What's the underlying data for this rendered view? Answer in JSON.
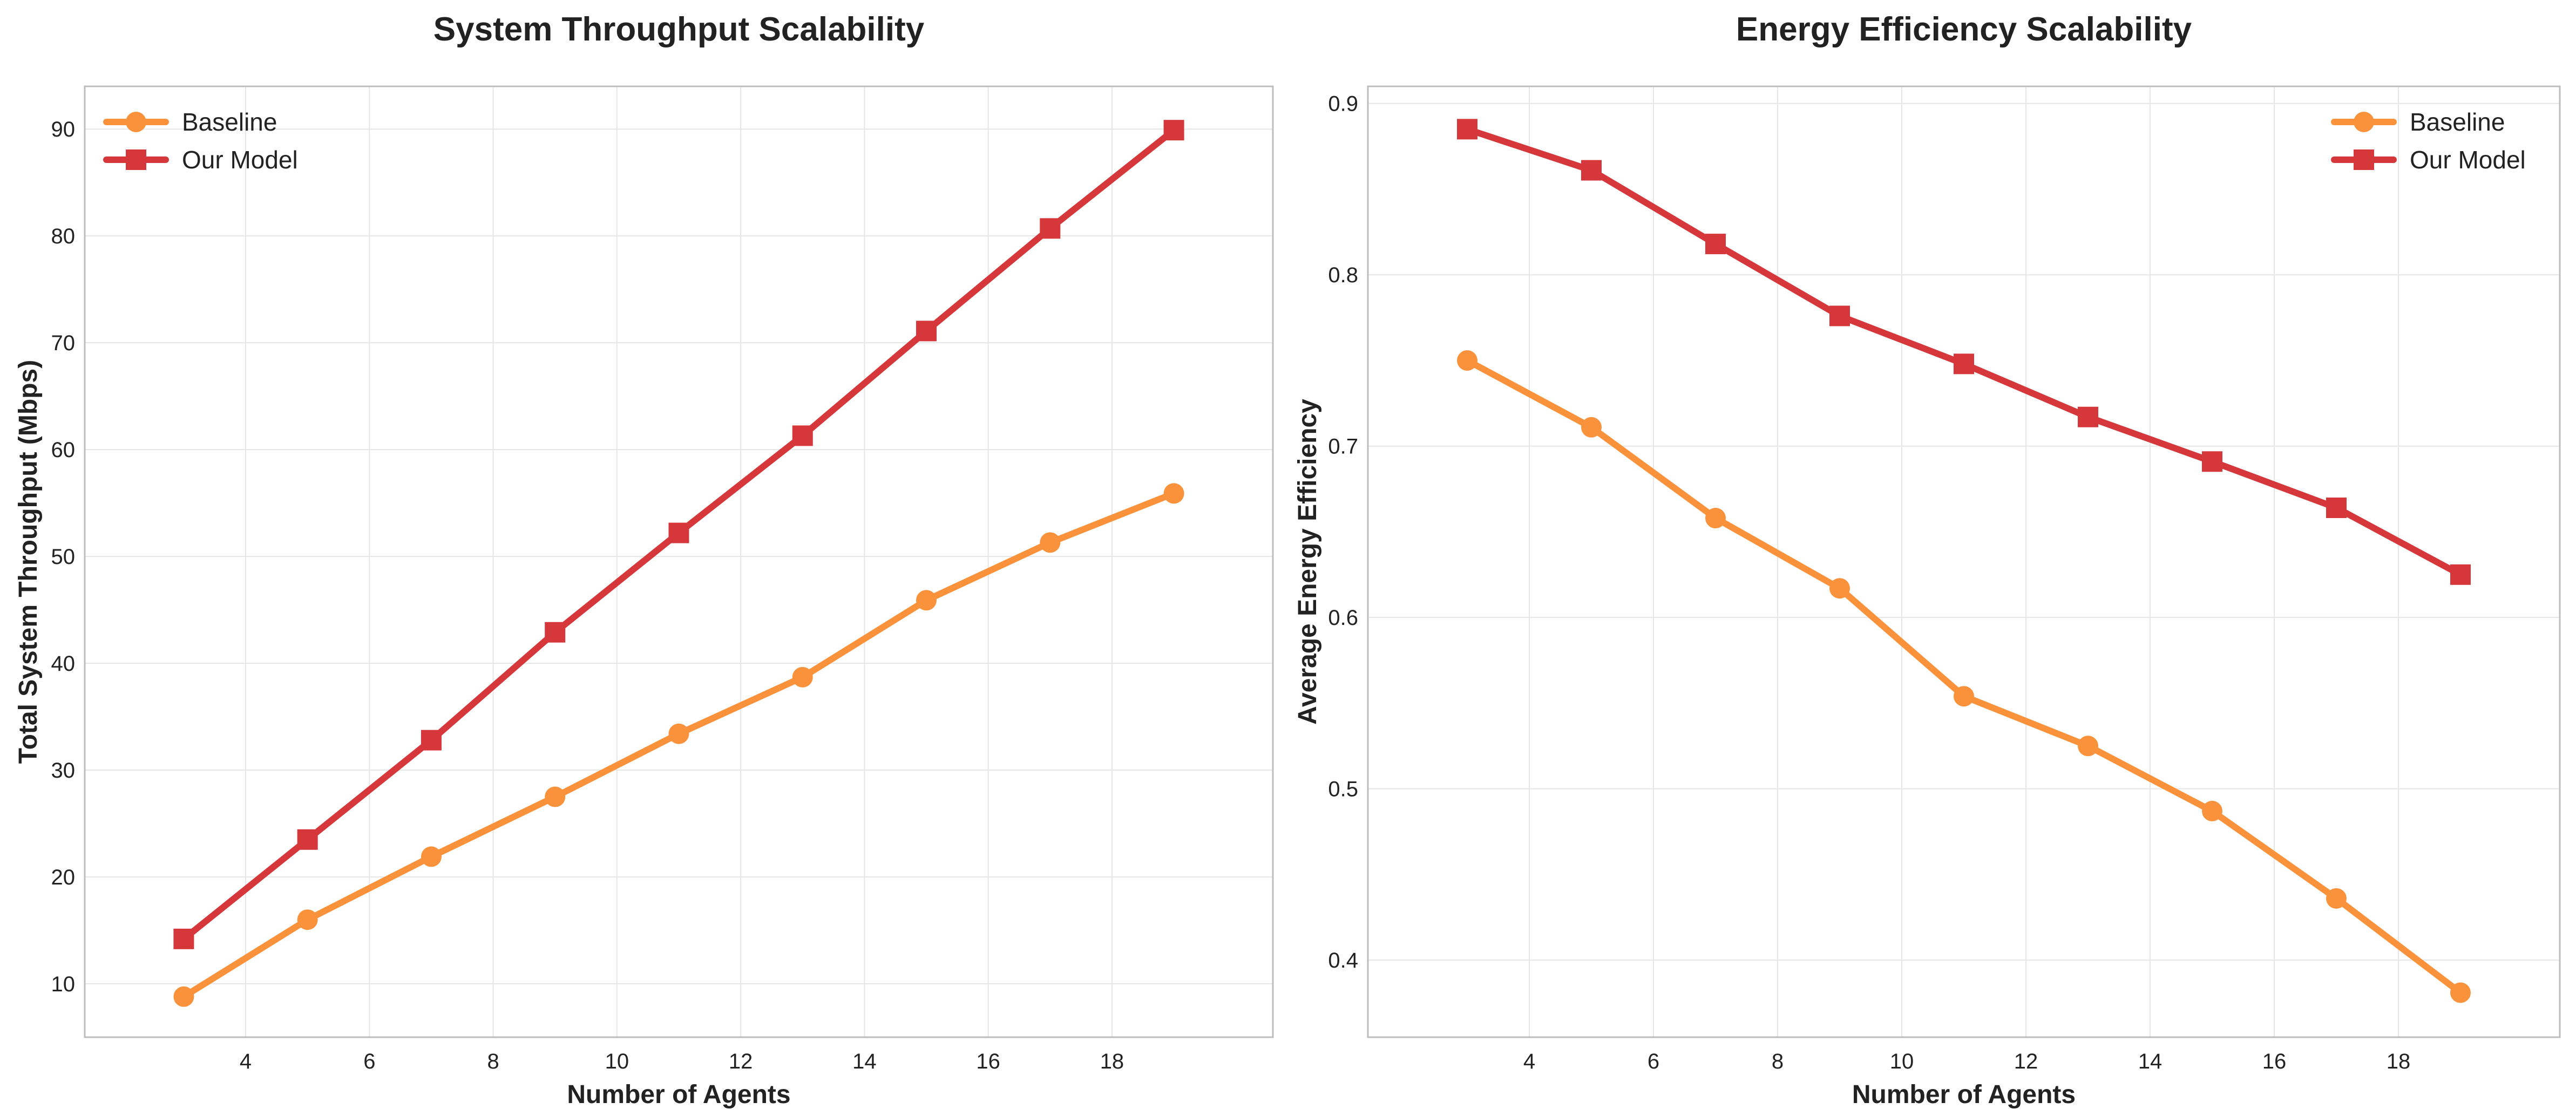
{
  "chart_data": [
    {
      "type": "line",
      "title": "System Throughput Scalability",
      "xlabel": "Number of Agents",
      "ylabel": "Total System Throughput (Mbps)",
      "x": [
        3,
        5,
        7,
        9,
        11,
        13,
        15,
        17,
        19
      ],
      "xlim": [
        1.4,
        20.6
      ],
      "ylim": [
        5,
        94
      ],
      "xticks": [
        4,
        6,
        8,
        10,
        12,
        14,
        16,
        18
      ],
      "yticks": [
        10,
        20,
        30,
        40,
        50,
        60,
        70,
        80,
        90
      ],
      "grid": true,
      "legend_position": "top-left",
      "series": [
        {
          "name": "Baseline",
          "color": "#f9923a",
          "marker": "circle",
          "values": [
            8.8,
            16.0,
            21.9,
            27.5,
            33.4,
            38.7,
            45.9,
            51.3,
            55.9
          ]
        },
        {
          "name": "Our Model",
          "color": "#d6373a",
          "marker": "square",
          "values": [
            14.2,
            23.5,
            32.8,
            42.9,
            52.2,
            61.3,
            71.1,
            80.7,
            89.9
          ]
        }
      ]
    },
    {
      "type": "line",
      "title": "Energy Efficiency Scalability",
      "xlabel": "Number of Agents",
      "ylabel": "Average Energy Efficiency",
      "x": [
        3,
        5,
        7,
        9,
        11,
        13,
        15,
        17,
        19
      ],
      "xlim": [
        1.4,
        20.6
      ],
      "ylim": [
        0.355,
        0.91
      ],
      "xticks": [
        4,
        6,
        8,
        10,
        12,
        14,
        16,
        18
      ],
      "yticks": [
        0.4,
        0.5,
        0.6,
        0.7,
        0.8,
        0.9
      ],
      "ytick_labels": [
        "0.4",
        "0.5",
        "0.6",
        "0.7",
        "0.8",
        "0.9"
      ],
      "grid": true,
      "legend_position": "top-right",
      "series": [
        {
          "name": "Baseline",
          "color": "#f9923a",
          "marker": "circle",
          "values": [
            0.75,
            0.711,
            0.658,
            0.617,
            0.554,
            0.525,
            0.487,
            0.436,
            0.381
          ]
        },
        {
          "name": "Our Model",
          "color": "#d6373a",
          "marker": "square",
          "values": [
            0.885,
            0.861,
            0.818,
            0.776,
            0.748,
            0.717,
            0.691,
            0.664,
            0.625
          ]
        }
      ]
    }
  ]
}
